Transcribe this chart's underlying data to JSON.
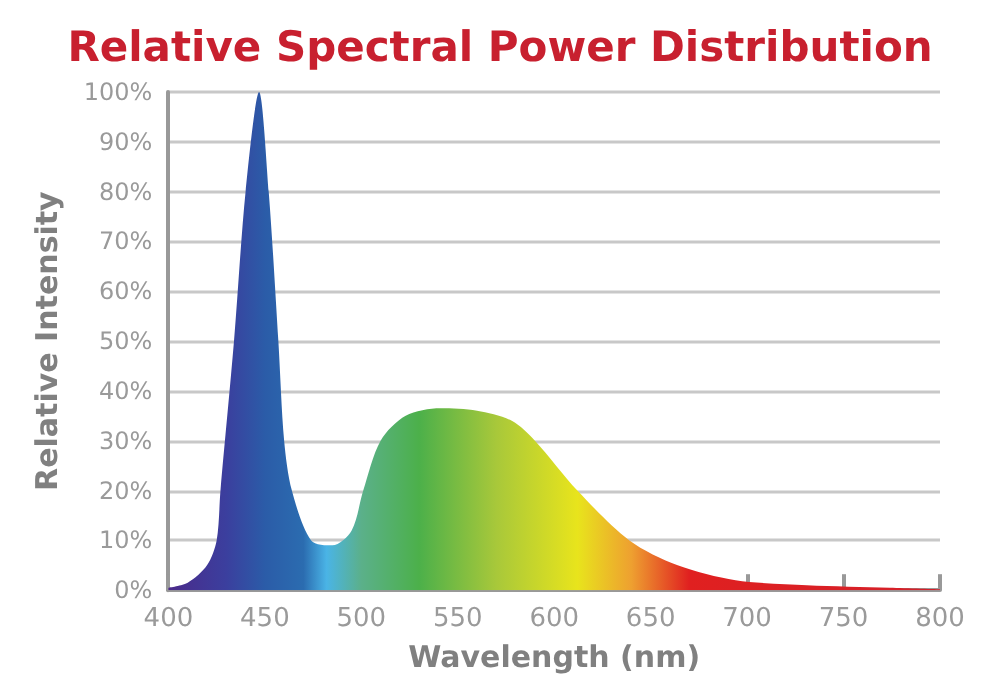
{
  "chart_data": {
    "type": "area",
    "title": "Relative Spectral Power Distribution",
    "xlabel": "Wavelength (nm)",
    "ylabel": "Relative Intensity",
    "x": [
      400,
      410,
      420,
      425,
      427,
      434,
      440,
      447,
      452,
      457,
      460,
      464,
      474,
      485,
      495,
      501,
      510,
      523,
      541,
      560,
      578,
      590,
      612,
      639,
      664,
      694,
      731,
      774,
      800
    ],
    "values": [
      0.5,
      1.5,
      5,
      10,
      20,
      50,
      80,
      100,
      80,
      50,
      30,
      20,
      10,
      9,
      12,
      20,
      30,
      35,
      36.5,
      36,
      34,
      30,
      20,
      10,
      5,
      2,
      1,
      0.5,
      0.2
    ],
    "xlim": [
      400,
      800
    ],
    "xticks": [
      400,
      450,
      500,
      550,
      600,
      650,
      700,
      750,
      800
    ],
    "ylim": [
      0,
      100
    ],
    "yticks": [
      {
        "value": 0,
        "label": "0%"
      },
      {
        "value": 10,
        "label": "10%"
      },
      {
        "value": 20,
        "label": "20%"
      },
      {
        "value": 30,
        "label": "30%"
      },
      {
        "value": 40,
        "label": "40%"
      },
      {
        "value": 50,
        "label": "50%"
      },
      {
        "value": 60,
        "label": "60%"
      },
      {
        "value": 70,
        "label": "70%"
      },
      {
        "value": 80,
        "label": "80%"
      },
      {
        "value": 90,
        "label": "90%"
      },
      {
        "value": 100,
        "label": "100%"
      }
    ],
    "grid": "y",
    "marker": "none"
  }
}
